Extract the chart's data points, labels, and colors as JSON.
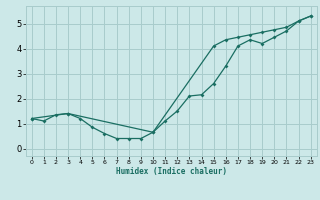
{
  "xlabel": "Humidex (Indice chaleur)",
  "bg_color": "#cce8e8",
  "grid_color": "#a8cccc",
  "line_color": "#1a6e62",
  "xlim": [
    -0.5,
    23.5
  ],
  "ylim": [
    -0.3,
    5.7
  ],
  "xticks": [
    0,
    1,
    2,
    3,
    4,
    5,
    6,
    7,
    8,
    9,
    10,
    11,
    12,
    13,
    14,
    15,
    16,
    17,
    18,
    19,
    20,
    21,
    22,
    23
  ],
  "yticks": [
    0,
    1,
    2,
    3,
    4,
    5
  ],
  "line1_x": [
    0,
    1,
    2,
    3,
    4,
    5,
    6,
    7,
    8,
    9,
    10,
    11,
    12,
    13,
    14,
    15,
    16,
    17,
    18,
    19,
    20,
    21,
    22,
    23
  ],
  "line1_y": [
    1.2,
    1.1,
    1.35,
    1.4,
    1.2,
    0.85,
    0.6,
    0.4,
    0.4,
    0.4,
    0.65,
    1.1,
    1.5,
    2.1,
    2.15,
    2.6,
    3.3,
    4.1,
    4.35,
    4.2,
    4.45,
    4.7,
    5.1,
    5.3
  ],
  "line2_x": [
    0,
    3,
    10,
    15,
    16,
    17,
    18,
    19,
    20,
    21,
    22,
    23
  ],
  "line2_y": [
    1.2,
    1.4,
    0.65,
    4.1,
    4.35,
    4.45,
    4.55,
    4.65,
    4.75,
    4.85,
    5.1,
    5.3
  ]
}
